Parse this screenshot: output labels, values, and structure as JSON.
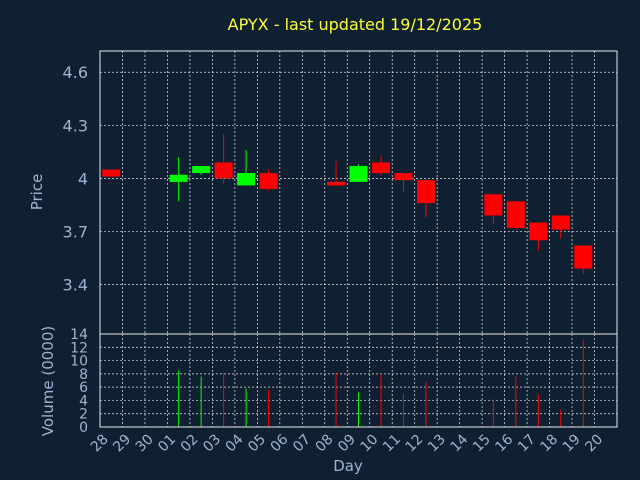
{
  "chart_data": [
    {
      "type": "candlestick",
      "title": "APYX - last updated 19/12/2025",
      "ylabel": "Price",
      "ylim": [
        3.12,
        4.72
      ],
      "yticks": [
        "3.4",
        "3.7",
        "4",
        "4.3",
        "4.6"
      ],
      "ytick_values": [
        3.4,
        3.7,
        4.0,
        4.3,
        4.6
      ],
      "grid": true,
      "up_color": "#00ff00",
      "down_color": "#ff0000",
      "categories": [
        "28",
        "29",
        "30",
        "01",
        "02",
        "03",
        "04",
        "05",
        "06",
        "07",
        "08",
        "09",
        "10",
        "11",
        "12",
        "13",
        "14",
        "15",
        "16",
        "17",
        "18",
        "19",
        "20"
      ],
      "candles": [
        {
          "day": "28",
          "open": 4.05,
          "close": 4.01,
          "high": 4.05,
          "low": 4.01
        },
        {
          "day": "01",
          "open": 3.98,
          "close": 4.02,
          "high": 4.12,
          "low": 3.87
        },
        {
          "day": "02",
          "open": 4.03,
          "close": 4.07,
          "high": 4.07,
          "low": 4.02
        },
        {
          "day": "03",
          "open": 4.09,
          "close": 4.0,
          "high": 4.25,
          "low": 3.97
        },
        {
          "day": "04",
          "open": 3.96,
          "close": 4.03,
          "high": 4.16,
          "low": 3.96
        },
        {
          "day": "05",
          "open": 4.03,
          "close": 3.94,
          "high": 4.05,
          "low": 3.93
        },
        {
          "day": "08",
          "open": 3.98,
          "close": 3.96,
          "high": 4.1,
          "low": 3.96
        },
        {
          "day": "09",
          "open": 3.98,
          "close": 4.07,
          "high": 4.08,
          "low": 3.98
        },
        {
          "day": "10",
          "open": 4.09,
          "close": 4.03,
          "high": 4.13,
          "low": 4.02
        },
        {
          "day": "11",
          "open": 4.03,
          "close": 3.99,
          "high": 4.03,
          "low": 3.92
        },
        {
          "day": "12",
          "open": 3.99,
          "close": 3.86,
          "high": 3.99,
          "low": 3.78
        },
        {
          "day": "15",
          "open": 3.91,
          "close": 3.79,
          "high": 3.91,
          "low": 3.74
        },
        {
          "day": "16",
          "open": 3.87,
          "close": 3.72,
          "high": 3.87,
          "low": 3.71
        },
        {
          "day": "17",
          "open": 3.75,
          "close": 3.65,
          "high": 3.75,
          "low": 3.59
        },
        {
          "day": "18",
          "open": 3.79,
          "close": 3.71,
          "high": 3.79,
          "low": 3.66
        },
        {
          "day": "19",
          "open": 3.62,
          "close": 3.49,
          "high": 3.62,
          "low": 3.46
        }
      ]
    },
    {
      "type": "bar",
      "xlabel": "Day",
      "ylabel": "Volume (0000)",
      "ylim": [
        0,
        14
      ],
      "yticks": [
        "0",
        "2",
        "4",
        "6",
        "8",
        "10",
        "12",
        "14"
      ],
      "ytick_values": [
        0,
        2,
        4,
        6,
        8,
        10,
        12,
        14
      ],
      "grid": true,
      "categories": [
        "28",
        "29",
        "30",
        "01",
        "02",
        "03",
        "04",
        "05",
        "06",
        "07",
        "08",
        "09",
        "10",
        "11",
        "12",
        "13",
        "14",
        "15",
        "16",
        "17",
        "18",
        "19",
        "20"
      ],
      "bars": [
        {
          "day": "01",
          "value": 8.5,
          "color": "#00ff00"
        },
        {
          "day": "02",
          "value": 7.6,
          "color": "#00ff00"
        },
        {
          "day": "03",
          "value": 8.2,
          "color": "#ff0000"
        },
        {
          "day": "04",
          "value": 5.8,
          "color": "#00ff00"
        },
        {
          "day": "05",
          "value": 5.6,
          "color": "#ff0000"
        },
        {
          "day": "08",
          "value": 8.2,
          "color": "#ff0000"
        },
        {
          "day": "09",
          "value": 5.2,
          "color": "#00ff00"
        },
        {
          "day": "10",
          "value": 8.0,
          "color": "#ff0000"
        },
        {
          "day": "11",
          "value": 5.0,
          "color": "#ff0000"
        },
        {
          "day": "12",
          "value": 6.8,
          "color": "#ff0000"
        },
        {
          "day": "15",
          "value": 4.2,
          "color": "#ff0000"
        },
        {
          "day": "16",
          "value": 7.6,
          "color": "#ff0000"
        },
        {
          "day": "17",
          "value": 5.0,
          "color": "#ff0000"
        },
        {
          "day": "18",
          "value": 2.6,
          "color": "#ff0000"
        },
        {
          "day": "19",
          "value": 13.2,
          "color": "#ff0000"
        }
      ]
    }
  ]
}
